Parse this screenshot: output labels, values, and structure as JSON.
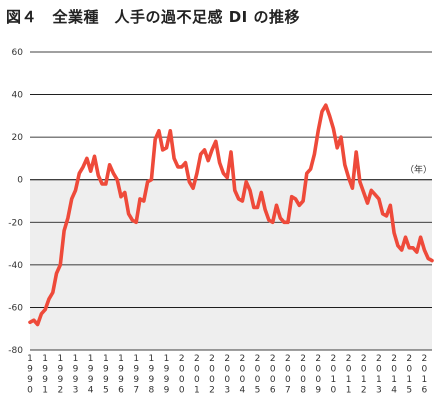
{
  "chart_data": {
    "type": "line",
    "title": "図４　全業種　人手の過不足感 DI の推移",
    "unit_label": "（年）",
    "ylim": [
      -80,
      60
    ],
    "yticks": [
      60,
      40,
      20,
      0,
      -20,
      -40,
      -60,
      -80
    ],
    "grid": true,
    "shaded_region": [
      -80,
      0
    ],
    "colors": {
      "line": "#ee4a3a",
      "shade": "#eeeeee",
      "grid": "#000000"
    },
    "year_labels": [
      "1990",
      "1991",
      "1992",
      "1993",
      "1994",
      "1995",
      "1996",
      "1997",
      "1998",
      "1999",
      "2000",
      "2001",
      "2002",
      "2003",
      "2004",
      "2005",
      "2006",
      "2007",
      "2008",
      "2009",
      "2010",
      "2011",
      "2012",
      "2013",
      "2014",
      "2015",
      "2016"
    ],
    "series": [
      {
        "x": [
          1990.0,
          1990.25,
          1990.5,
          1990.75,
          1991.0,
          1991.25,
          1991.5,
          1991.75,
          1992.0,
          1992.25,
          1992.5,
          1992.75,
          1993.0,
          1993.25,
          1993.5,
          1993.75,
          1994.0,
          1994.25,
          1994.5,
          1994.75,
          1995.0,
          1995.25,
          1995.5,
          1995.75,
          1996.0,
          1996.25,
          1996.5,
          1996.75,
          1997.0,
          1997.25,
          1997.5,
          1997.75,
          1998.0,
          1998.25,
          1998.5,
          1998.75,
          1999.0,
          1999.25,
          1999.5,
          1999.75,
          2000.0,
          2000.25,
          2000.5,
          2000.75,
          2001.0,
          2001.25,
          2001.5,
          2001.75,
          2002.0,
          2002.25,
          2002.5,
          2002.75,
          2003.0,
          2003.25,
          2003.5,
          2003.75,
          2004.0,
          2004.25,
          2004.5,
          2004.75,
          2005.0,
          2005.25,
          2005.5,
          2005.75,
          2006.0,
          2006.25,
          2006.5,
          2006.75,
          2007.0,
          2007.25,
          2007.5,
          2007.75,
          2008.0,
          2008.25,
          2008.5,
          2008.75,
          2009.0,
          2009.25,
          2009.5,
          2009.75,
          2010.0,
          2010.25,
          2010.5,
          2010.75,
          2011.0,
          2011.25,
          2011.5,
          2011.75,
          2012.0,
          2012.25,
          2012.5,
          2012.75,
          2013.0,
          2013.25,
          2013.5,
          2013.75,
          2014.0,
          2014.25,
          2014.5,
          2014.75,
          2015.0,
          2015.25,
          2015.5,
          2015.75,
          2016.0,
          2016.25,
          2016.5
        ],
        "y": [
          -67,
          -66,
          -68,
          -63,
          -61,
          -56,
          -53,
          -44,
          -40,
          -24,
          -18,
          -9,
          -5,
          3,
          6,
          10,
          4,
          11,
          2,
          -2,
          -2,
          7,
          3,
          0,
          -8,
          -6,
          -16,
          -19,
          -20,
          -9,
          -10,
          -1,
          0,
          19,
          23,
          14,
          15,
          23,
          10,
          6,
          6,
          8,
          -1,
          -4,
          3,
          12,
          14,
          9,
          14,
          18,
          8,
          3,
          1,
          13,
          -5,
          -9,
          -10,
          -1,
          -5,
          -13,
          -13,
          -6,
          -14,
          -19,
          -20,
          -12,
          -18,
          -20,
          -20,
          -8,
          -9,
          -12,
          -10,
          3,
          5,
          12,
          23,
          32,
          35,
          30,
          24,
          15,
          20,
          7,
          1,
          -4,
          13,
          -1,
          -6,
          -11,
          -5,
          -7,
          -9,
          -16,
          -17,
          -12,
          -25,
          -31,
          -33,
          -27,
          -32,
          -32,
          -34,
          -27,
          -33,
          -37,
          -38
        ]
      }
    ]
  }
}
